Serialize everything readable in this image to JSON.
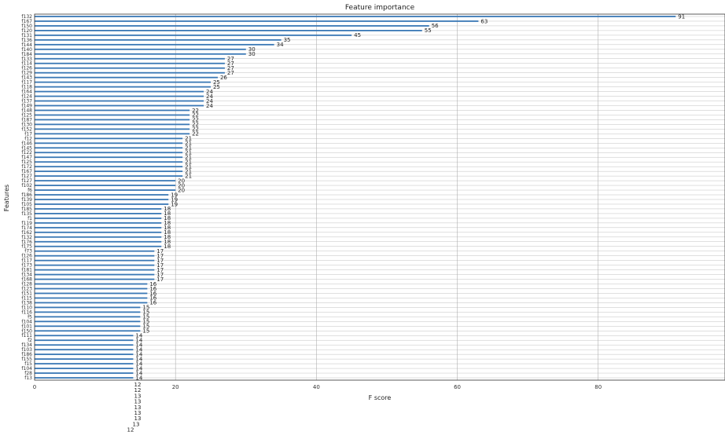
{
  "chart_data": {
    "type": "bar",
    "orientation": "horizontal",
    "title": "Feature importance",
    "xlabel": "F score",
    "ylabel": "Features",
    "xlim": [
      0,
      98
    ],
    "xticks": [
      0,
      20,
      40,
      60,
      80
    ],
    "grid": true,
    "bar_color": "#3a78b5",
    "grid_color": "#b0b0b0",
    "categories": [
      "f132",
      "f167",
      "f150",
      "f120",
      "f131",
      "f136",
      "f144",
      "f140",
      "f184",
      "f133",
      "f114",
      "f126",
      "f129",
      "f143",
      "f117",
      "f118",
      "f164",
      "f124",
      "f137",
      "f149",
      "f148",
      "f125",
      "f187",
      "f130",
      "f152",
      "f17",
      "f12",
      "f146",
      "f145",
      "f122",
      "f147",
      "f125",
      "f172",
      "f167",
      "f127",
      "f127",
      "f102",
      "f6",
      "f186",
      "f139",
      "f105",
      "f185",
      "f135",
      "f1",
      "f119",
      "f174",
      "f162",
      "f132",
      "f176",
      "f175",
      "f73",
      "f126",
      "f117",
      "f173",
      "f181",
      "f134",
      "f168",
      "f128",
      "f123",
      "f151",
      "f115",
      "f138",
      "f110",
      "f116",
      "f5",
      "f104",
      "f101",
      "f150",
      "f111",
      "f2",
      "f134",
      "f103",
      "f186",
      "f155",
      "f15",
      "f104",
      "f28",
      "f13"
    ],
    "values": [
      91,
      63,
      56,
      55,
      45,
      35,
      34,
      30,
      30,
      27,
      27,
      27,
      27,
      26,
      25,
      25,
      24,
      24,
      24,
      24,
      22,
      22,
      22,
      22,
      22,
      22,
      21,
      21,
      21,
      21,
      21,
      21,
      21,
      21,
      21,
      20,
      20,
      20,
      19,
      19,
      19,
      18,
      18,
      18,
      18,
      18,
      18,
      18,
      18,
      18,
      17,
      17,
      17,
      17,
      17,
      17,
      17,
      16,
      16,
      16,
      16,
      16,
      15,
      15,
      15,
      15,
      15,
      15,
      14,
      14,
      14,
      14,
      14,
      14,
      14,
      14,
      14,
      14
    ],
    "overflow_labels": [
      "12",
      "12",
      "13",
      "13",
      "13",
      "13",
      "13",
      "13",
      "12",
      "12"
    ]
  }
}
